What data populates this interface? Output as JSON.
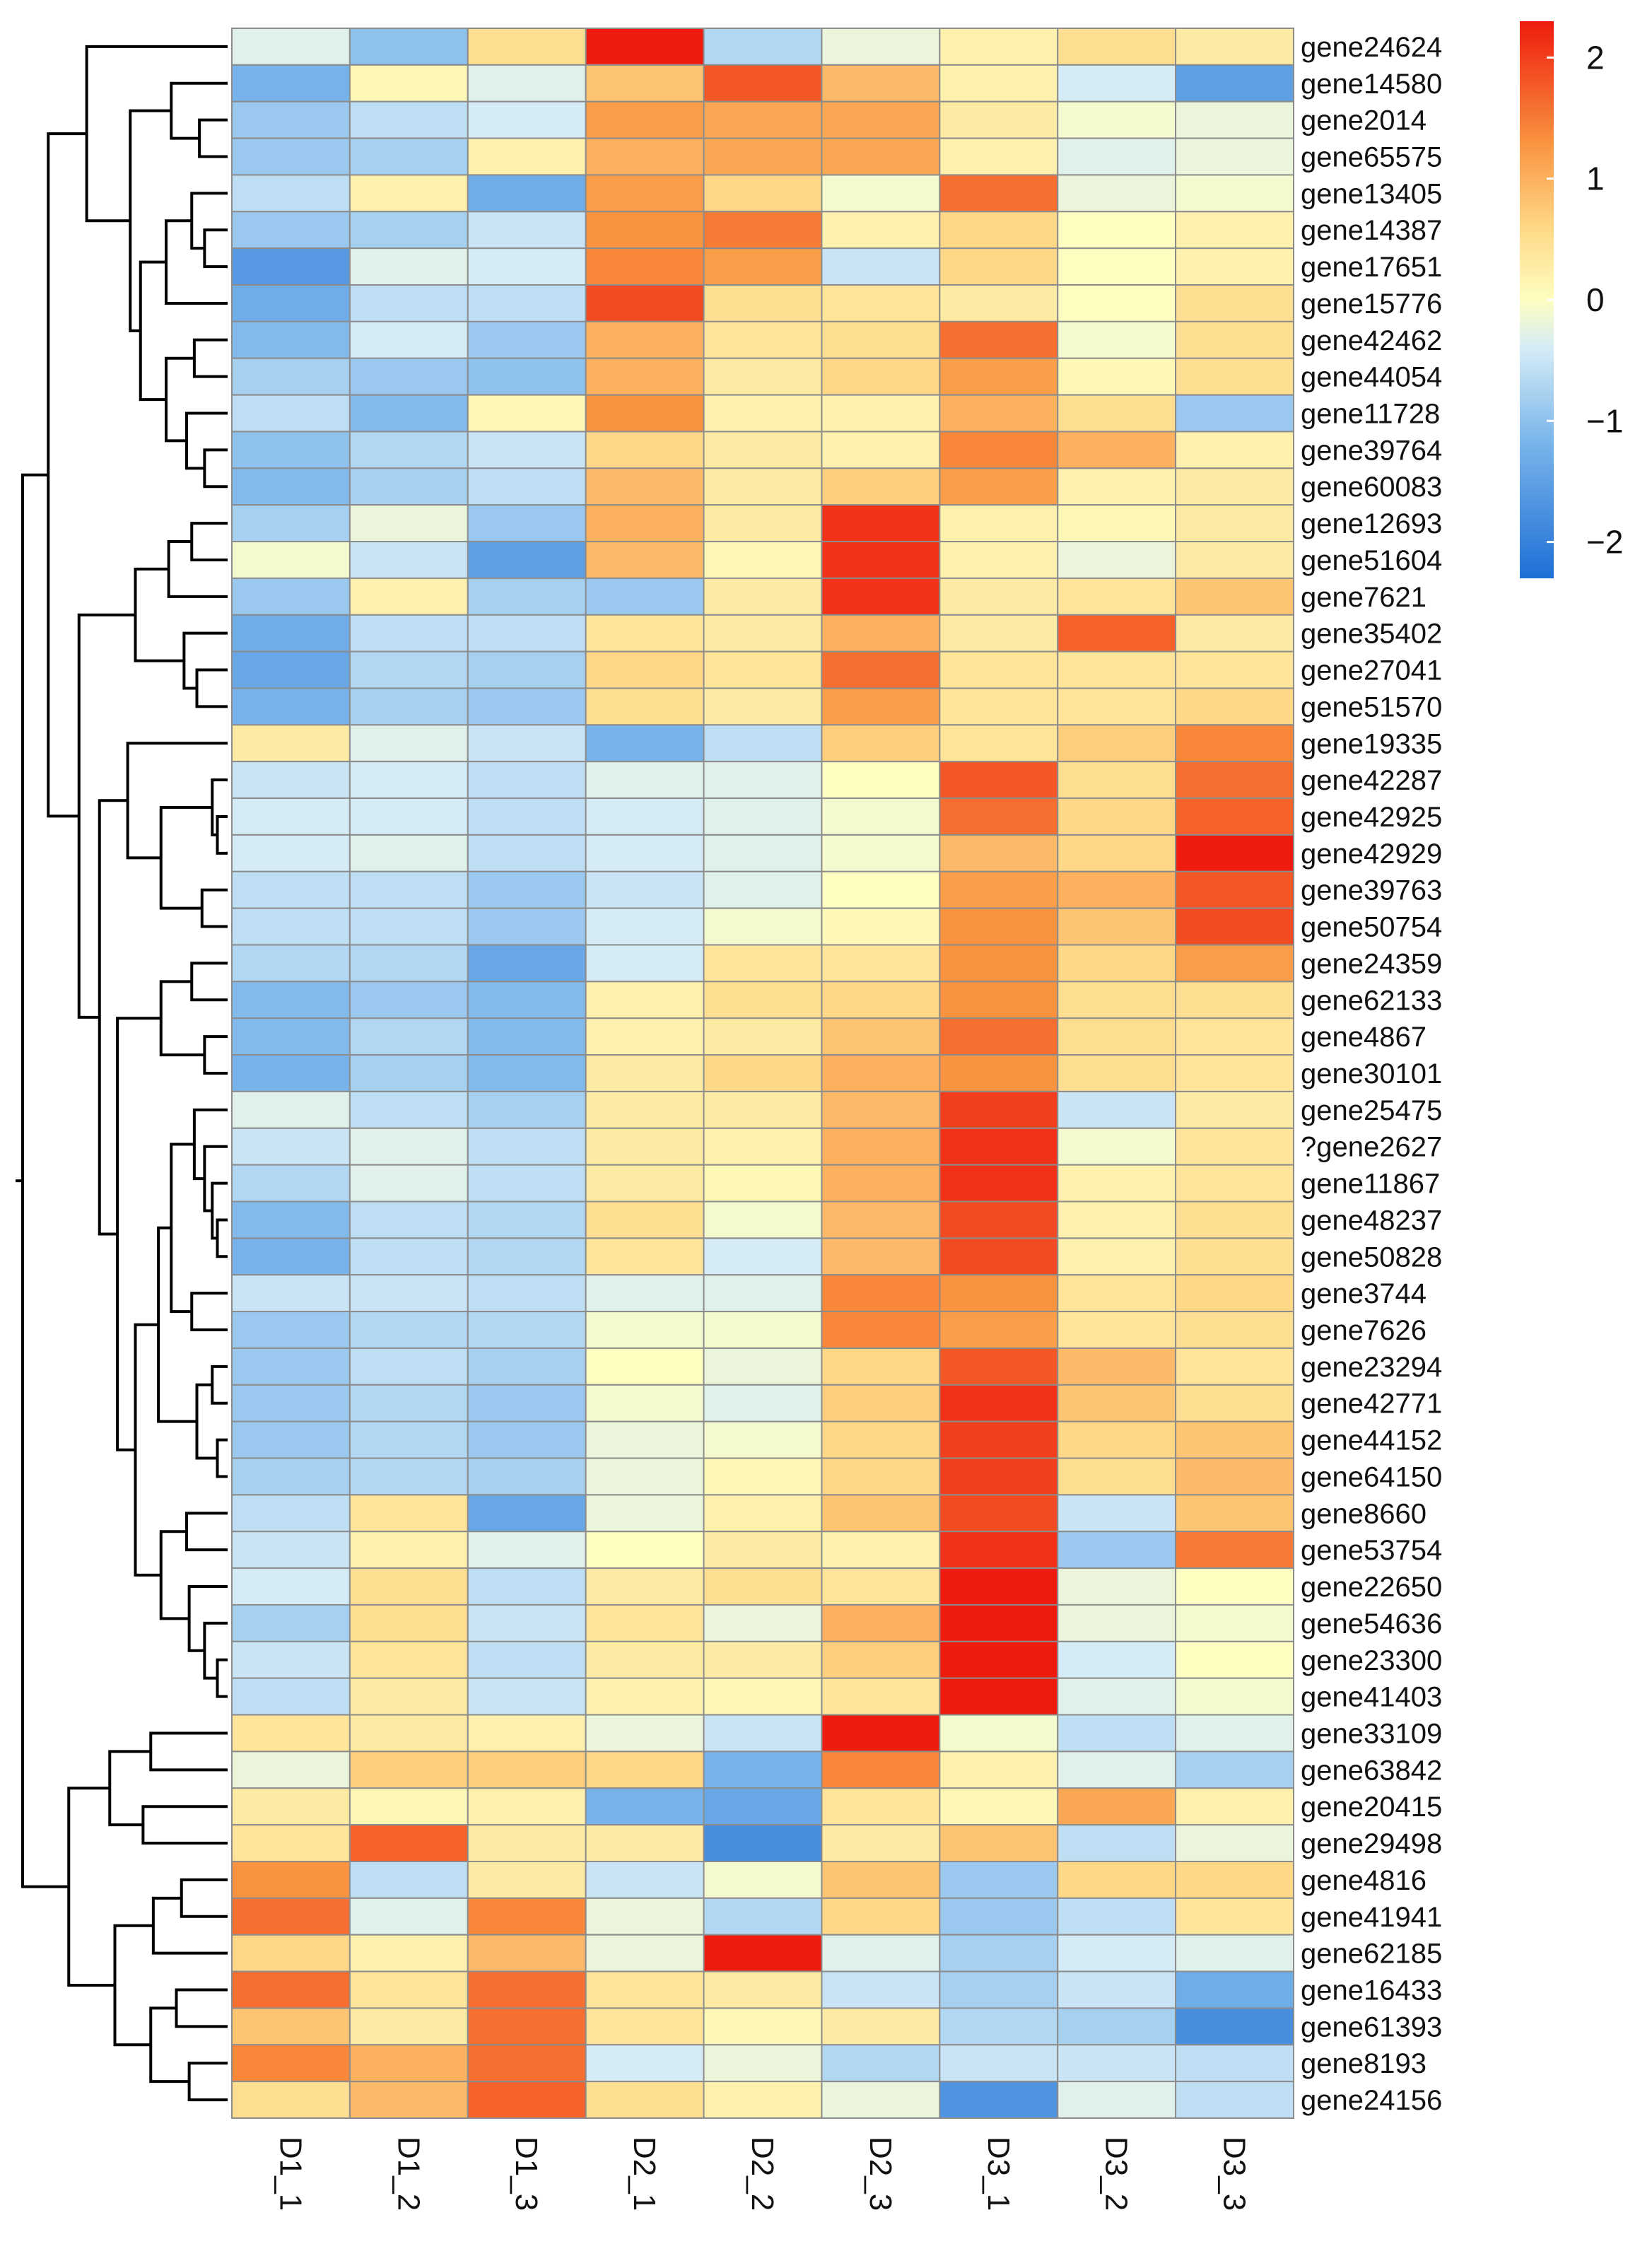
{
  "chart_data": {
    "type": "heatmap",
    "title": "",
    "columns": [
      "D1_1",
      "D1_2",
      "D1_3",
      "D2_1",
      "D2_2",
      "D2_3",
      "D3_1",
      "D3_2",
      "D3_3"
    ],
    "rows": [
      "gene24624",
      "gene14580",
      "gene2014",
      "gene65575",
      "gene13405",
      "gene14387",
      "gene17651",
      "gene15776",
      "gene42462",
      "gene44054",
      "gene11728",
      "gene39764",
      "gene60083",
      "gene12693",
      "gene51604",
      "gene7621",
      "gene35402",
      "gene27041",
      "gene51570",
      "gene19335",
      "gene42287",
      "gene42925",
      "gene42929",
      "gene39763",
      "gene50754",
      "gene24359",
      "gene62133",
      "gene4867",
      "gene30101",
      "gene25475",
      "?gene2627",
      "gene11867",
      "gene48237",
      "gene50828",
      "gene3744",
      "gene7626",
      "gene23294",
      "gene42771",
      "gene44152",
      "gene64150",
      "gene8660",
      "gene53754",
      "gene22650",
      "gene54636",
      "gene23300",
      "gene41403",
      "gene33109",
      "gene63842",
      "gene20415",
      "gene29498",
      "gene4816",
      "gene41941",
      "gene62185",
      "gene16433",
      "gene61393",
      "gene8193",
      "gene24156"
    ],
    "values": [
      [
        -0.3,
        -1.0,
        0.5,
        2.3,
        -0.7,
        -0.2,
        0.2,
        0.5,
        0.3
      ],
      [
        -1.2,
        0.1,
        -0.3,
        0.8,
        1.8,
        0.9,
        0.2,
        -0.4,
        -1.5
      ],
      [
        -0.9,
        -0.6,
        -0.4,
        1.2,
        1.1,
        1.1,
        0.3,
        -0.1,
        -0.2
      ],
      [
        -0.9,
        -0.8,
        0.2,
        1.0,
        1.1,
        1.1,
        0.2,
        -0.3,
        -0.2
      ],
      [
        -0.6,
        0.2,
        -1.3,
        1.2,
        0.6,
        -0.1,
        1.6,
        -0.2,
        -0.1
      ],
      [
        -0.9,
        -0.8,
        -0.5,
        1.3,
        1.5,
        0.2,
        0.6,
        0.0,
        0.2
      ],
      [
        -1.6,
        -0.3,
        -0.4,
        1.4,
        1.2,
        -0.5,
        0.6,
        0.0,
        0.2
      ],
      [
        -1.3,
        -0.6,
        -0.6,
        1.9,
        0.5,
        0.4,
        0.3,
        0.0,
        0.5
      ],
      [
        -1.1,
        -0.4,
        -0.9,
        1.0,
        0.4,
        0.5,
        1.6,
        -0.1,
        0.5
      ],
      [
        -0.8,
        -0.9,
        -1.0,
        1.0,
        0.3,
        0.6,
        1.2,
        0.1,
        0.5
      ],
      [
        -0.6,
        -1.1,
        0.1,
        1.3,
        0.2,
        0.2,
        1.0,
        0.5,
        -0.9
      ],
      [
        -1.0,
        -0.7,
        -0.5,
        0.6,
        0.3,
        0.2,
        1.4,
        1.0,
        0.2
      ],
      [
        -1.1,
        -0.8,
        -0.6,
        0.9,
        0.3,
        0.7,
        1.2,
        0.2,
        0.3
      ],
      [
        -0.8,
        -0.2,
        -0.9,
        1.0,
        0.3,
        2.1,
        0.2,
        0.1,
        0.3
      ],
      [
        -0.1,
        -0.5,
        -1.5,
        0.9,
        0.1,
        2.1,
        0.2,
        -0.2,
        0.3
      ],
      [
        -0.9,
        0.2,
        -0.8,
        -0.9,
        0.3,
        2.1,
        0.3,
        0.4,
        0.8
      ],
      [
        -1.3,
        -0.6,
        -0.6,
        0.4,
        0.3,
        1.0,
        0.3,
        1.7,
        0.3
      ],
      [
        -1.4,
        -0.7,
        -0.8,
        0.6,
        0.4,
        1.6,
        0.4,
        0.4,
        0.4
      ],
      [
        -1.2,
        -0.8,
        -0.9,
        0.5,
        0.3,
        1.2,
        0.4,
        0.4,
        0.6
      ],
      [
        0.3,
        -0.3,
        -0.5,
        -1.2,
        -0.6,
        0.7,
        0.4,
        0.7,
        1.4
      ],
      [
        -0.5,
        -0.4,
        -0.6,
        -0.3,
        -0.3,
        0.0,
        1.8,
        0.5,
        1.6
      ],
      [
        -0.4,
        -0.4,
        -0.6,
        -0.4,
        -0.3,
        -0.1,
        1.6,
        0.6,
        1.7
      ],
      [
        -0.4,
        -0.3,
        -0.6,
        -0.4,
        -0.3,
        -0.1,
        0.9,
        0.6,
        2.3
      ],
      [
        -0.6,
        -0.6,
        -0.9,
        -0.5,
        -0.3,
        0.0,
        1.2,
        1.0,
        1.8
      ],
      [
        -0.6,
        -0.6,
        -0.9,
        -0.4,
        -0.1,
        0.1,
        1.3,
        0.8,
        1.9
      ],
      [
        -0.7,
        -0.7,
        -1.4,
        -0.4,
        0.4,
        0.4,
        1.3,
        0.6,
        1.2
      ],
      [
        -1.1,
        -0.9,
        -1.1,
        0.2,
        0.5,
        0.6,
        1.3,
        0.5,
        0.5
      ],
      [
        -1.1,
        -0.7,
        -1.1,
        0.2,
        0.3,
        0.8,
        1.6,
        0.5,
        0.4
      ],
      [
        -1.2,
        -0.8,
        -1.1,
        0.3,
        0.6,
        1.0,
        1.3,
        0.5,
        0.4
      ],
      [
        -0.3,
        -0.6,
        -0.8,
        0.3,
        0.3,
        0.9,
        2.0,
        -0.5,
        0.3
      ],
      [
        -0.5,
        -0.3,
        -0.6,
        0.3,
        0.2,
        1.0,
        2.1,
        -0.1,
        0.4
      ],
      [
        -0.7,
        -0.3,
        -0.6,
        0.3,
        0.1,
        1.0,
        2.1,
        0.2,
        0.4
      ],
      [
        -1.1,
        -0.6,
        -0.7,
        0.5,
        -0.1,
        0.9,
        1.9,
        0.2,
        0.5
      ],
      [
        -1.2,
        -0.6,
        -0.7,
        0.4,
        -0.4,
        0.9,
        1.9,
        0.2,
        0.5
      ],
      [
        -0.5,
        -0.5,
        -0.6,
        -0.3,
        -0.3,
        1.4,
        1.3,
        0.4,
        0.6
      ],
      [
        -0.9,
        -0.7,
        -0.7,
        -0.1,
        -0.1,
        1.4,
        1.2,
        0.4,
        0.5
      ],
      [
        -0.9,
        -0.6,
        -0.8,
        0.0,
        -0.2,
        0.6,
        1.8,
        0.9,
        0.4
      ],
      [
        -0.9,
        -0.7,
        -0.9,
        -0.1,
        -0.3,
        0.7,
        2.1,
        0.8,
        0.5
      ],
      [
        -0.9,
        -0.7,
        -0.9,
        -0.2,
        -0.1,
        0.6,
        2.0,
        0.6,
        0.8
      ],
      [
        -0.8,
        -0.7,
        -0.8,
        -0.2,
        0.1,
        0.6,
        2.0,
        0.5,
        0.9
      ],
      [
        -0.6,
        0.4,
        -1.4,
        -0.2,
        0.2,
        0.8,
        1.9,
        -0.5,
        0.8
      ],
      [
        -0.5,
        0.2,
        -0.3,
        0.0,
        0.3,
        0.2,
        2.1,
        -0.9,
        1.5
      ],
      [
        -0.4,
        0.5,
        -0.6,
        0.3,
        0.5,
        0.4,
        2.3,
        -0.2,
        0.0
      ],
      [
        -0.8,
        0.5,
        -0.5,
        0.4,
        -0.2,
        1.0,
        2.3,
        -0.2,
        -0.1
      ],
      [
        -0.5,
        0.4,
        -0.6,
        0.3,
        0.3,
        0.7,
        2.3,
        -0.4,
        0.0
      ],
      [
        -0.6,
        0.3,
        -0.5,
        0.2,
        0.1,
        0.4,
        2.3,
        -0.3,
        -0.1
      ],
      [
        0.4,
        0.3,
        0.2,
        -0.2,
        -0.5,
        2.3,
        -0.1,
        -0.6,
        -0.3
      ],
      [
        -0.2,
        0.7,
        0.7,
        0.6,
        -1.2,
        1.4,
        0.2,
        -0.3,
        -0.8
      ],
      [
        0.3,
        0.1,
        0.2,
        -1.2,
        -1.4,
        0.4,
        0.1,
        1.1,
        0.2
      ],
      [
        0.4,
        1.7,
        0.3,
        0.3,
        -1.8,
        0.3,
        0.8,
        -0.6,
        -0.2
      ],
      [
        1.3,
        -0.6,
        0.3,
        -0.5,
        -0.1,
        0.8,
        -0.9,
        0.6,
        0.6
      ],
      [
        1.6,
        -0.3,
        1.4,
        -0.2,
        -0.7,
        0.6,
        -0.9,
        -0.6,
        0.4
      ],
      [
        0.6,
        0.2,
        0.9,
        -0.2,
        2.3,
        -0.3,
        -0.8,
        -0.4,
        -0.3
      ],
      [
        1.6,
        0.4,
        1.6,
        0.4,
        0.3,
        -0.5,
        -0.8,
        -0.5,
        -1.3
      ],
      [
        0.8,
        0.3,
        1.6,
        0.4,
        0.1,
        0.3,
        -0.7,
        -0.8,
        -1.8
      ],
      [
        1.4,
        1.0,
        1.6,
        -0.4,
        -0.2,
        -0.7,
        -0.5,
        -0.5,
        -0.6
      ],
      [
        0.5,
        0.9,
        1.7,
        0.5,
        0.2,
        -0.2,
        -1.7,
        -0.3,
        -0.6
      ]
    ],
    "color_scale": {
      "min": -2.3,
      "max": 2.3,
      "stops": [
        {
          "v": -2.3,
          "color": "#1f6fd6"
        },
        {
          "v": -1.2,
          "color": "#77b3ea"
        },
        {
          "v": -0.4,
          "color": "#d5ecf6"
        },
        {
          "v": 0.0,
          "color": "#fefec0"
        },
        {
          "v": 0.6,
          "color": "#fed886"
        },
        {
          "v": 1.3,
          "color": "#f9933f"
        },
        {
          "v": 2.3,
          "color": "#ee1b0e"
        }
      ]
    },
    "legend": {
      "ticks": [
        2,
        1,
        0,
        -1,
        -2
      ],
      "tick_labels": [
        "2",
        "1",
        "0",
        "−1",
        "−2"
      ],
      "position": "top-right"
    },
    "dendrogram": "rows",
    "cell_border_color": "#8c8c8c"
  }
}
